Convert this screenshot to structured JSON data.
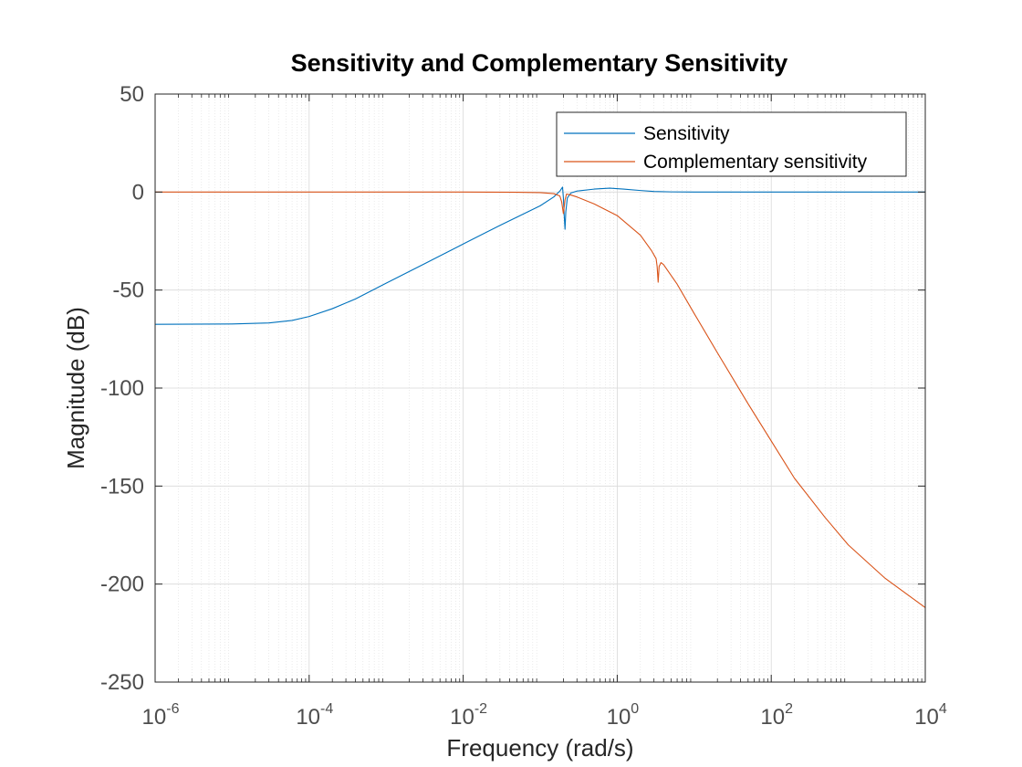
{
  "chart_data": {
    "type": "line",
    "title": "Sensitivity and Complementary Sensitivity",
    "xlabel": "Frequency  (rad/s)",
    "ylabel": "Magnitude (dB)",
    "xscale": "log",
    "xlim": [
      1e-06,
      10000
    ],
    "ylim": [
      -250,
      50
    ],
    "grid": true,
    "legend": "top-right",
    "x_ticks": [
      {
        "base": "10",
        "exp": "-6",
        "value": 1e-06
      },
      {
        "base": "10",
        "exp": "-4",
        "value": 0.0001
      },
      {
        "base": "10",
        "exp": "-2",
        "value": 0.01
      },
      {
        "base": "10",
        "exp": "0",
        "value": 1
      },
      {
        "base": "10",
        "exp": "2",
        "value": 100
      },
      {
        "base": "10",
        "exp": "4",
        "value": 10000
      }
    ],
    "y_ticks": [
      "50",
      "0",
      "-50",
      "-100",
      "-150",
      "-200",
      "-250"
    ],
    "series": [
      {
        "name": "Sensitivity",
        "color": "#0072BD",
        "points": [
          [
            1e-06,
            -67.5
          ],
          [
            1e-05,
            -67.3
          ],
          [
            3e-05,
            -66.8
          ],
          [
            6e-05,
            -65.5
          ],
          [
            0.0001,
            -63.5
          ],
          [
            0.0002,
            -59.5
          ],
          [
            0.0004,
            -54.5
          ],
          [
            0.001,
            -46.5
          ],
          [
            0.003,
            -37
          ],
          [
            0.01,
            -26.5
          ],
          [
            0.03,
            -17
          ],
          [
            0.1,
            -7
          ],
          [
            0.15,
            -2.5
          ],
          [
            0.18,
            0.5
          ],
          [
            0.195,
            2.5
          ],
          [
            0.2,
            -3
          ],
          [
            0.205,
            -12
          ],
          [
            0.21,
            -19
          ],
          [
            0.215,
            -10
          ],
          [
            0.225,
            -3
          ],
          [
            0.25,
            -0.5
          ],
          [
            0.3,
            0.5
          ],
          [
            0.5,
            1.5
          ],
          [
            0.8,
            2
          ],
          [
            1.2,
            1.5
          ],
          [
            2,
            0.8
          ],
          [
            3,
            0.3
          ],
          [
            5,
            0.1
          ],
          [
            10,
            0
          ],
          [
            100,
            0
          ],
          [
            10000,
            0
          ]
        ]
      },
      {
        "name": "Complementary sensitivity",
        "color": "#D95319",
        "points": [
          [
            1e-06,
            0
          ],
          [
            0.0001,
            0
          ],
          [
            0.01,
            0
          ],
          [
            0.05,
            -0.1
          ],
          [
            0.1,
            -0.3
          ],
          [
            0.15,
            -0.8
          ],
          [
            0.18,
            -2
          ],
          [
            0.19,
            -5
          ],
          [
            0.2,
            -11
          ],
          [
            0.21,
            -4
          ],
          [
            0.22,
            -1
          ],
          [
            0.25,
            -1.5
          ],
          [
            0.3,
            -2.5
          ],
          [
            0.5,
            -6
          ],
          [
            1,
            -12
          ],
          [
            2,
            -22
          ],
          [
            2.8,
            -30
          ],
          [
            3.2,
            -34
          ],
          [
            3.3,
            -38
          ],
          [
            3.4,
            -46
          ],
          [
            3.5,
            -38
          ],
          [
            3.7,
            -36
          ],
          [
            4,
            -37
          ],
          [
            6,
            -47
          ],
          [
            10,
            -62
          ],
          [
            20,
            -82
          ],
          [
            50,
            -108
          ],
          [
            100,
            -127
          ],
          [
            200,
            -146
          ],
          [
            500,
            -166
          ],
          [
            1000,
            -180
          ],
          [
            3000,
            -197
          ],
          [
            10000,
            -212
          ]
        ]
      }
    ]
  }
}
